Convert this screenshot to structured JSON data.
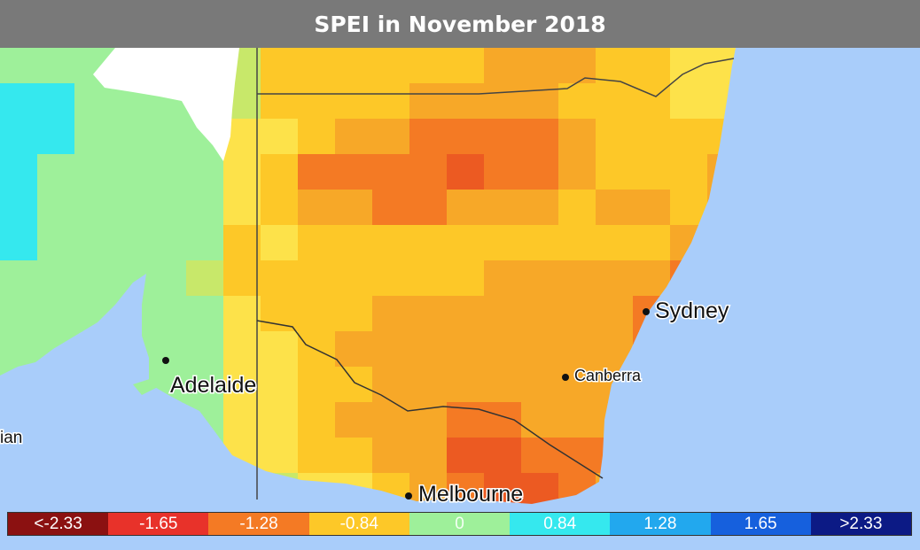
{
  "title": "SPEI in November 2018",
  "cities": [
    {
      "name": "Sydney",
      "size": 25
    },
    {
      "name": "Adelaide",
      "size": 25
    },
    {
      "name": "Canberra",
      "size": 18
    },
    {
      "name": "Melbourne",
      "size": 25
    }
  ],
  "partial_label": "ian",
  "legend": [
    {
      "label": "<-2.33",
      "color": "#8b1111"
    },
    {
      "label": "-1.65",
      "color": "#e8322a"
    },
    {
      "label": "-1.28",
      "color": "#f47a24"
    },
    {
      "label": "-0.84",
      "color": "#fdc828"
    },
    {
      "label": "0",
      "color": "#9ef09a"
    },
    {
      "label": "0.84",
      "color": "#35e8ee"
    },
    {
      "label": "1.28",
      "color": "#22a8ee"
    },
    {
      "label": "1.65",
      "color": "#1660dd"
    },
    {
      "label": ">2.33",
      "color": "#0c1a85"
    }
  ],
  "colors": {
    "ocean": "#a9cdfa",
    "title_bg": "#797979"
  }
}
